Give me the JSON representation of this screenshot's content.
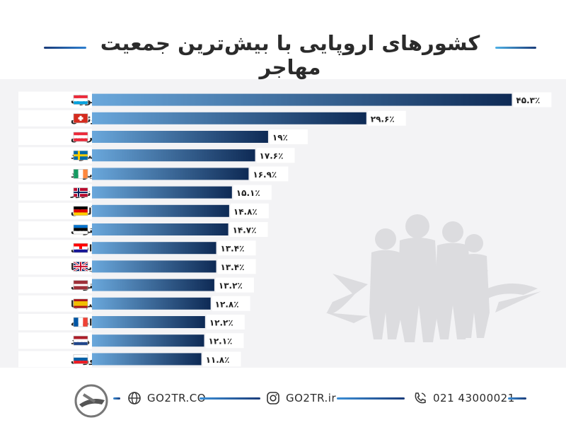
{
  "chart_data": {
    "type": "bar",
    "orientation": "horizontal",
    "title": "کشورهای اروپایی با بیش‌ترین جمعیت مهاجر",
    "categories": [
      "لوکزامبورگ",
      "سوئیس",
      "اتریش",
      "سوئد",
      "ایرلند",
      "نروژ",
      "آلمان",
      "استونی",
      "کرواسی",
      "بریتانیا",
      "لتونی",
      "اسپانیا",
      "فرانسه",
      "هلند",
      "اسلوونی"
    ],
    "values": [
      45.3,
      29.6,
      19,
      17.6,
      16.9,
      15.1,
      14.8,
      14.7,
      13.4,
      13.4,
      13.2,
      12.8,
      12.2,
      12.1,
      11.8
    ],
    "value_labels": [
      "۴۵.۳٪",
      "۲۹.۶٪",
      "۱۹٪",
      "۱۷.۶٪",
      "۱۶.۹٪",
      "۱۵.۱٪",
      "۱۴.۸٪",
      "۱۴.۷٪",
      "۱۳.۴٪",
      "۱۳.۴٪",
      "۱۳.۲٪",
      "۱۲.۸٪",
      "۱۲.۲٪",
      "۱۲.۱٪",
      "۱۱.۸٪"
    ],
    "flag_icons": [
      "luxembourg-flag-icon",
      "switzerland-flag-icon",
      "austria-flag-icon",
      "sweden-flag-icon",
      "ireland-flag-icon",
      "norway-flag-icon",
      "germany-flag-icon",
      "estonia-flag-icon",
      "croatia-flag-icon",
      "uk-flag-icon",
      "latvia-flag-icon",
      "spain-flag-icon",
      "france-flag-icon",
      "netherlands-flag-icon",
      "slovenia-flag-icon"
    ],
    "xlim": [
      0,
      50
    ],
    "grid": false,
    "bar_gradient": [
      "#6aa8dc",
      "#0e2a55"
    ]
  },
  "footer": {
    "website": "GO2TR.CO",
    "instagram": "GO2TR.ir",
    "phone": "021 43000021"
  },
  "colors": {
    "accent_dark": "#1a3c7a",
    "accent_light": "#4fb1e6"
  }
}
